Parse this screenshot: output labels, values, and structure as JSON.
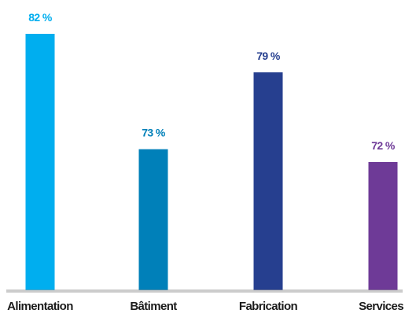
{
  "chart_data": {
    "type": "bar",
    "categories": [
      "Alimentation",
      "Bâtiment",
      "Fabrication",
      "Services"
    ],
    "values": [
      82,
      73,
      79,
      72
    ],
    "value_labels": [
      "82 %",
      "73 %",
      "79 %",
      "72 %"
    ],
    "colors": [
      "#00aeef",
      "#0080b9",
      "#263f8f",
      "#6e3a97"
    ],
    "title": "",
    "xlabel": "",
    "ylabel": "",
    "ylim": [
      62,
      82
    ],
    "grid": false,
    "legend": "none"
  }
}
